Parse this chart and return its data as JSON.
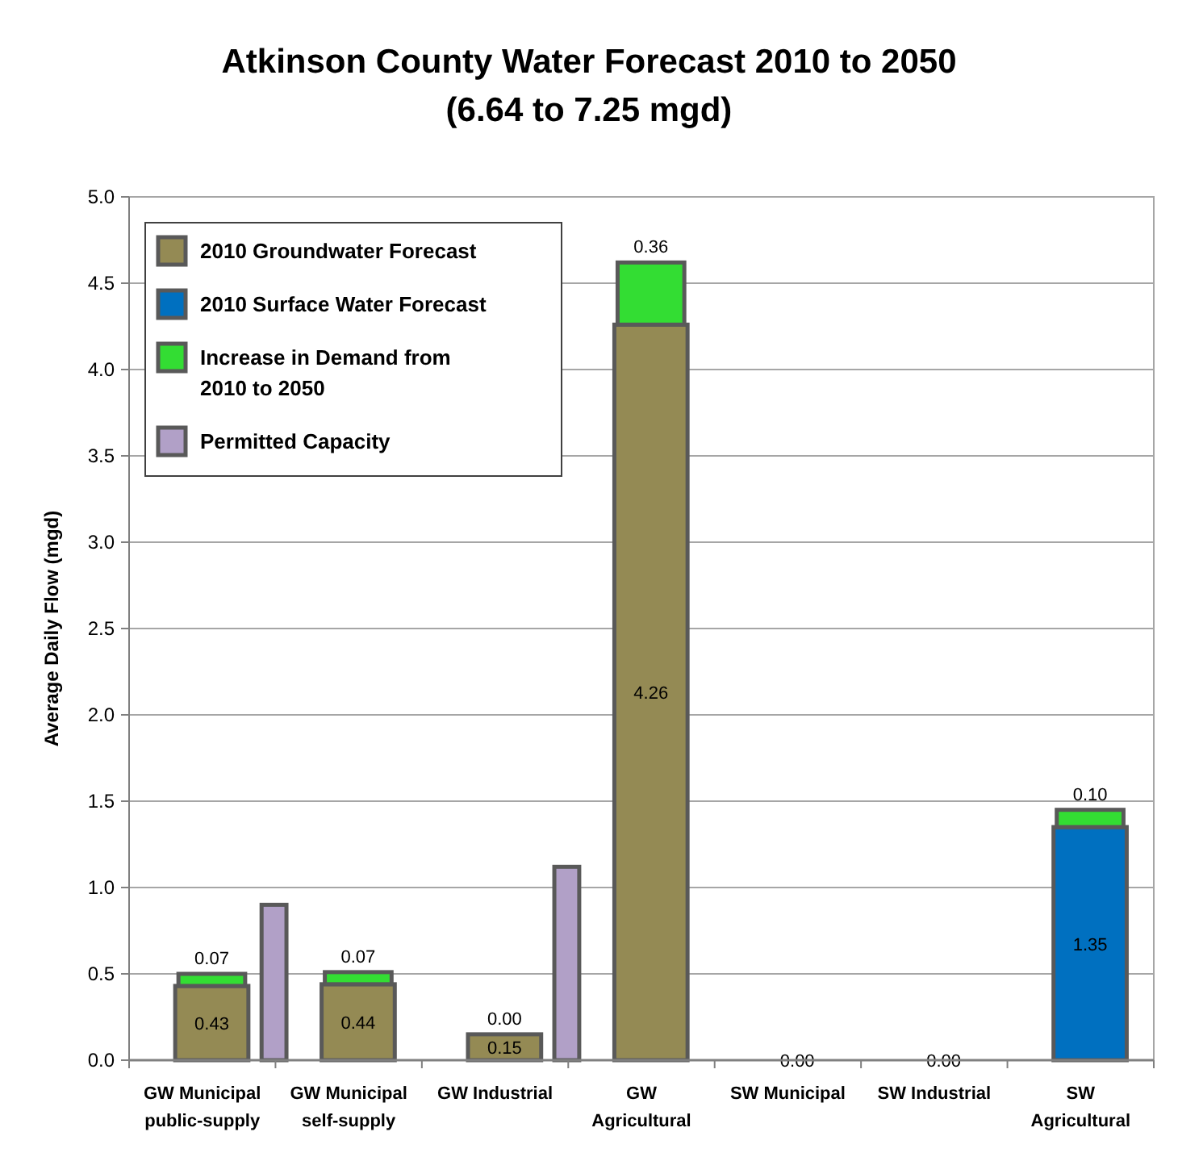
{
  "chart_data": {
    "type": "bar",
    "title": "Atkinson County Water Forecast 2010 to 2050",
    "subtitle": "(6.64 to 7.25 mgd)",
    "ylabel": "Average Daily Flow (mgd)",
    "categories": [
      "GW Municipal public-supply",
      "GW Municipal self-supply",
      "GW Industrial",
      "GW Agricultural",
      "SW Municipal",
      "SW Industrial",
      "SW Agricultural"
    ],
    "series": [
      {
        "name": "2010 Groundwater Forecast",
        "color": "#948a54",
        "values": [
          0.43,
          0.44,
          0.15,
          4.26,
          null,
          null,
          null
        ],
        "value_labels": [
          "0.43",
          "0.44",
          "0.15",
          "4.26",
          null,
          null,
          null
        ]
      },
      {
        "name": "2010 Surface Water Forecast",
        "color": "#0070c0",
        "values": [
          null,
          null,
          null,
          null,
          0,
          0,
          1.35
        ],
        "value_labels": [
          null,
          null,
          null,
          null,
          "0.00",
          "0.00",
          "1.35"
        ]
      },
      {
        "name": "Increase in Demand from 2010 to 2050",
        "color": "#33dd33",
        "values": [
          0.07,
          0.07,
          null,
          0.36,
          null,
          null,
          0.1
        ],
        "base": [
          0.43,
          0.44,
          null,
          4.26,
          null,
          null,
          1.35
        ],
        "value_labels": [
          "0.07",
          "0.07",
          null,
          "0.36",
          null,
          null,
          "0.10"
        ]
      },
      {
        "name": "Permitted Capacity",
        "color": "#b1a0c7",
        "values": [
          0.9,
          null,
          1.12,
          null,
          null,
          null,
          null
        ]
      }
    ],
    "ylim": [
      0,
      5
    ],
    "yticks": [
      {
        "value": 0,
        "label": "0.0"
      },
      {
        "value": 0.5,
        "label": "0.5"
      },
      {
        "value": 1,
        "label": "1.0"
      },
      {
        "value": 1.5,
        "label": "1.5"
      },
      {
        "value": 2,
        "label": "2.0"
      },
      {
        "value": 2.5,
        "label": "2.5"
      },
      {
        "value": 3,
        "label": "3.0"
      },
      {
        "value": 3.5,
        "label": "3.5"
      },
      {
        "value": 4,
        "label": "4.0"
      },
      {
        "value": 4.5,
        "label": "4.5"
      },
      {
        "value": 5,
        "label": "5.0"
      }
    ],
    "annotations": [
      {
        "text": "0.00",
        "x": "GW Industrial",
        "y": 0.15
      }
    ],
    "grid": "y",
    "legend": "top left"
  }
}
